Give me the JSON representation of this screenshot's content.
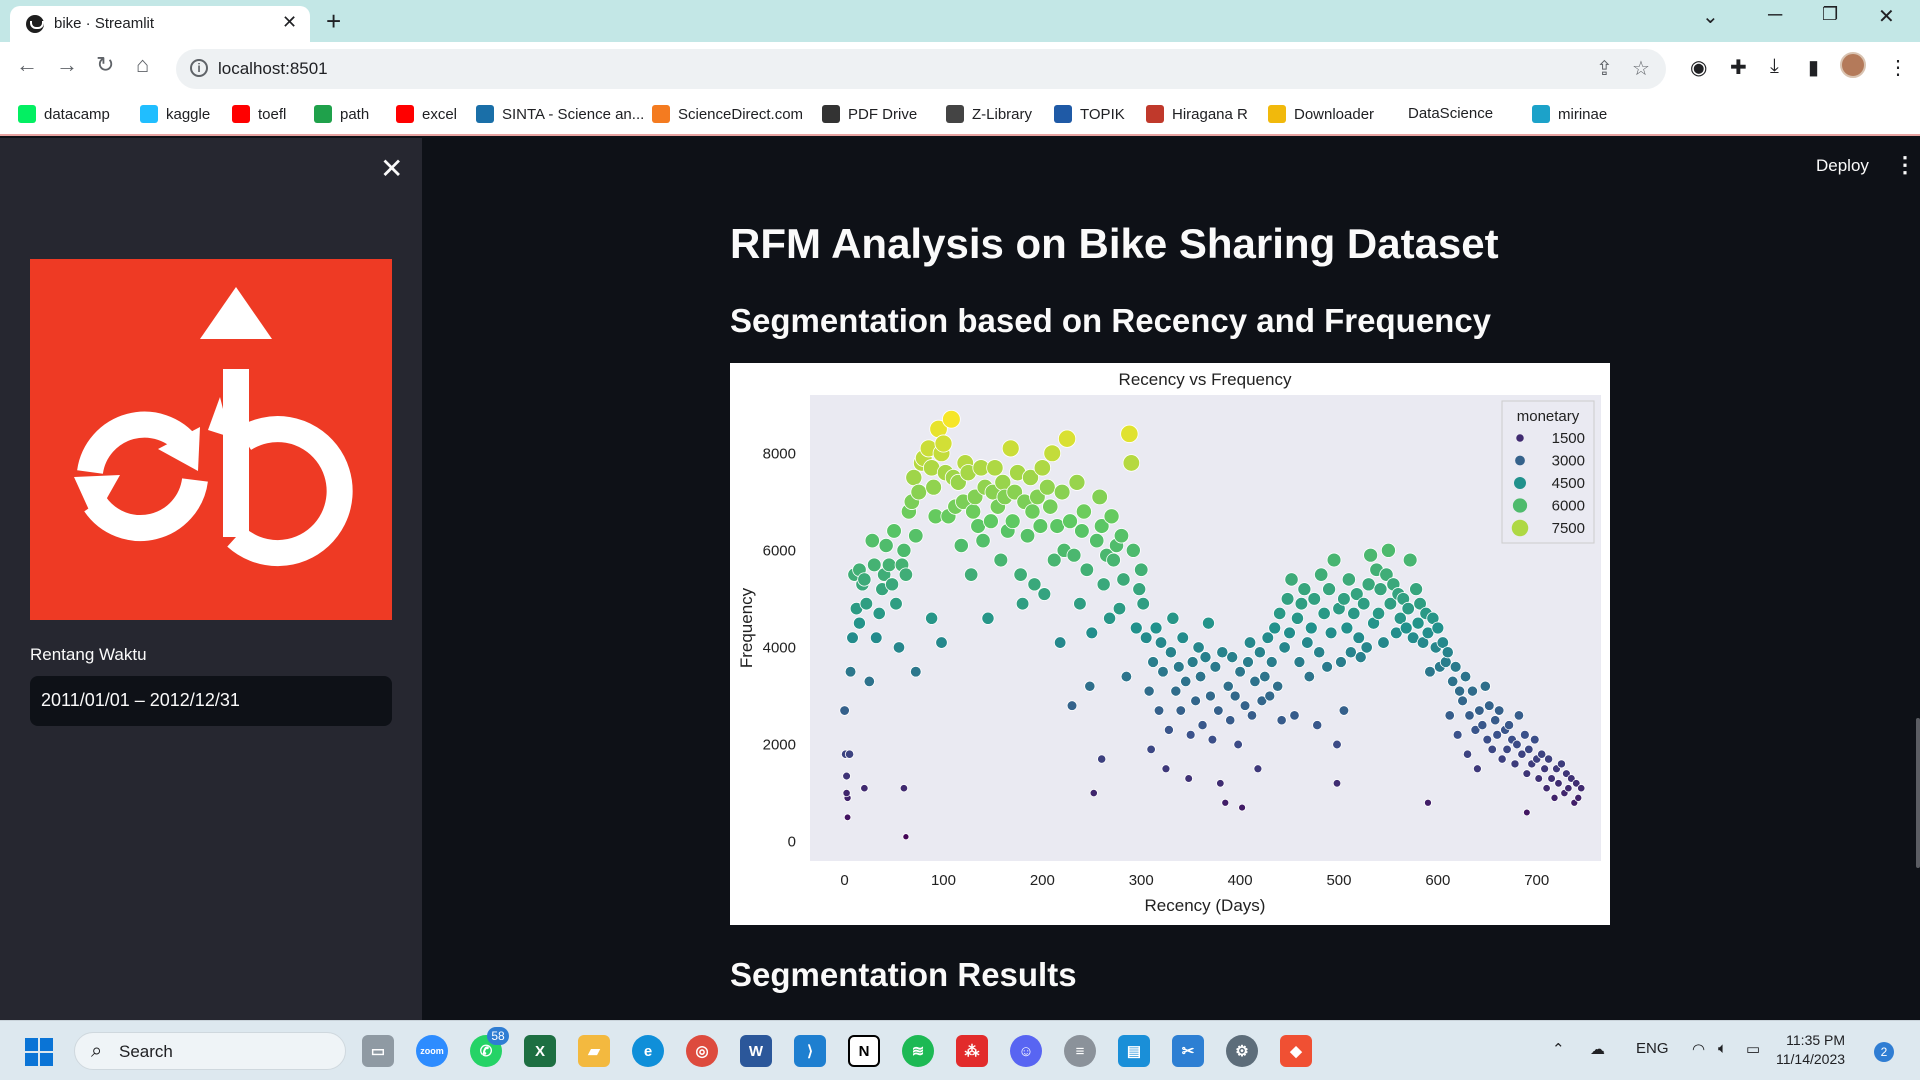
{
  "browser": {
    "tab_title": "bike · Streamlit",
    "url": "localhost:8501",
    "bookmarks": [
      {
        "label": "datacamp",
        "icon": "datacamp-icon",
        "color": "#03ef62"
      },
      {
        "label": "kaggle",
        "icon": "kaggle-icon",
        "color": "#20beff"
      },
      {
        "label": "toefl",
        "icon": "youtube-icon",
        "color": "#ff0000"
      },
      {
        "label": "path",
        "icon": "path-icon",
        "color": "#1fa14b"
      },
      {
        "label": "excel",
        "icon": "youtube-icon",
        "color": "#ff0000"
      },
      {
        "label": "SINTA - Science an...",
        "icon": "sinta-icon",
        "color": "#1a6fa8"
      },
      {
        "label": "ScienceDirect.com",
        "icon": "elsevier-icon",
        "color": "#f47b20"
      },
      {
        "label": "PDF Drive",
        "icon": "pdfdrive-icon",
        "color": "#333333"
      },
      {
        "label": "Z-Library",
        "icon": "zlibrary-icon",
        "color": "#444444"
      },
      {
        "label": "TOPIK",
        "icon": "topik-icon",
        "color": "#1f5aa6"
      },
      {
        "label": "Hiragana R",
        "icon": "hiragana-icon",
        "color": "#c0392b"
      },
      {
        "label": "Downloader",
        "icon": "downloader-icon",
        "color": "#f1b90c"
      },
      {
        "label": "DataScience",
        "icon": "",
        "color": "#ffffff"
      },
      {
        "label": "mirinae",
        "icon": "mirinae-icon",
        "color": "#1ca2c9"
      }
    ]
  },
  "app": {
    "deploy_label": "Deploy",
    "sidebar": {
      "date_label": "Rentang Waktu",
      "date_value": "2011/01/01 – 2012/12/31"
    },
    "title": "RFM Analysis on Bike Sharing Dataset",
    "subheader_1": "Segmentation based on Recency and Frequency",
    "subheader_2": "Segmentation Results"
  },
  "chart_data": {
    "type": "scatter",
    "title": "Recency vs Frequency",
    "xlabel": "Recency (Days)",
    "ylabel": "Frequency",
    "xlim": [
      -35,
      765
    ],
    "ylim": [
      -400,
      9200
    ],
    "xticks": [
      0,
      100,
      200,
      300,
      400,
      500,
      600,
      700
    ],
    "yticks": [
      0,
      2000,
      4000,
      6000,
      8000
    ],
    "hue": "monetary",
    "legend_title": "monetary",
    "legend_entries": [
      1500,
      3000,
      4500,
      6000,
      7500
    ],
    "legend_placement": "top-right",
    "colormap": "viridis",
    "grid": false,
    "points": [
      [
        0,
        2700
      ],
      [
        1,
        1800
      ],
      [
        2,
        1350
      ],
      [
        3,
        900
      ],
      [
        5,
        1800
      ],
      [
        6,
        3500
      ],
      [
        8,
        4200
      ],
      [
        10,
        5500
      ],
      [
        12,
        4800
      ],
      [
        15,
        5600
      ],
      [
        18,
        5300
      ],
      [
        20,
        5400
      ],
      [
        22,
        4900
      ],
      [
        25,
        3300
      ],
      [
        28,
        6200
      ],
      [
        30,
        5700
      ],
      [
        32,
        4200
      ],
      [
        35,
        4700
      ],
      [
        38,
        5200
      ],
      [
        40,
        5500
      ],
      [
        42,
        6100
      ],
      [
        45,
        5700
      ],
      [
        48,
        5300
      ],
      [
        50,
        6400
      ],
      [
        52,
        4900
      ],
      [
        55,
        4000
      ],
      [
        58,
        5700
      ],
      [
        60,
        6000
      ],
      [
        62,
        5500
      ],
      [
        65,
        6800
      ],
      [
        68,
        7000
      ],
      [
        70,
        7500
      ],
      [
        72,
        6300
      ],
      [
        75,
        7200
      ],
      [
        78,
        7800
      ],
      [
        80,
        7900
      ],
      [
        85,
        8100
      ],
      [
        88,
        7700
      ],
      [
        90,
        7300
      ],
      [
        92,
        6700
      ],
      [
        95,
        8500
      ],
      [
        98,
        8000
      ],
      [
        100,
        8200
      ],
      [
        102,
        7600
      ],
      [
        105,
        6700
      ],
      [
        108,
        8700
      ],
      [
        110,
        7500
      ],
      [
        112,
        6900
      ],
      [
        115,
        7400
      ],
      [
        118,
        6100
      ],
      [
        120,
        7000
      ],
      [
        122,
        7800
      ],
      [
        125,
        7600
      ],
      [
        128,
        5500
      ],
      [
        130,
        6800
      ],
      [
        132,
        7100
      ],
      [
        135,
        6500
      ],
      [
        138,
        7700
      ],
      [
        140,
        6200
      ],
      [
        142,
        7300
      ],
      [
        145,
        4600
      ],
      [
        148,
        6600
      ],
      [
        150,
        7200
      ],
      [
        152,
        7700
      ],
      [
        155,
        6900
      ],
      [
        158,
        5800
      ],
      [
        160,
        7400
      ],
      [
        162,
        7100
      ],
      [
        165,
        6400
      ],
      [
        168,
        8100
      ],
      [
        170,
        6600
      ],
      [
        172,
        7200
      ],
      [
        175,
        7600
      ],
      [
        178,
        5500
      ],
      [
        180,
        4900
      ],
      [
        182,
        7000
      ],
      [
        185,
        6300
      ],
      [
        188,
        7500
      ],
      [
        190,
        6800
      ],
      [
        192,
        5300
      ],
      [
        195,
        7100
      ],
      [
        198,
        6500
      ],
      [
        200,
        7700
      ],
      [
        202,
        5100
      ],
      [
        205,
        7300
      ],
      [
        208,
        6900
      ],
      [
        210,
        8000
      ],
      [
        212,
        5800
      ],
      [
        215,
        6500
      ],
      [
        218,
        4100
      ],
      [
        220,
        7200
      ],
      [
        222,
        6000
      ],
      [
        225,
        8300
      ],
      [
        228,
        6600
      ],
      [
        230,
        2800
      ],
      [
        232,
        5900
      ],
      [
        235,
        7400
      ],
      [
        238,
        4900
      ],
      [
        240,
        6400
      ],
      [
        242,
        6800
      ],
      [
        245,
        5600
      ],
      [
        248,
        3200
      ],
      [
        250,
        4300
      ],
      [
        252,
        1000
      ],
      [
        255,
        6200
      ],
      [
        258,
        7100
      ],
      [
        260,
        6500
      ],
      [
        262,
        5300
      ],
      [
        265,
        5900
      ],
      [
        268,
        4600
      ],
      [
        270,
        6700
      ],
      [
        272,
        5800
      ],
      [
        275,
        6100
      ],
      [
        278,
        4800
      ],
      [
        280,
        6300
      ],
      [
        282,
        5400
      ],
      [
        285,
        3400
      ],
      [
        288,
        8400
      ],
      [
        290,
        7800
      ],
      [
        292,
        6000
      ],
      [
        295,
        4400
      ],
      [
        298,
        5200
      ],
      [
        300,
        5600
      ],
      [
        302,
        4900
      ],
      [
        305,
        4200
      ],
      [
        308,
        3100
      ],
      [
        310,
        1900
      ],
      [
        312,
        3700
      ],
      [
        315,
        4400
      ],
      [
        318,
        2700
      ],
      [
        320,
        4100
      ],
      [
        322,
        3500
      ],
      [
        325,
        1500
      ],
      [
        328,
        2300
      ],
      [
        330,
        3900
      ],
      [
        332,
        4600
      ],
      [
        335,
        3100
      ],
      [
        338,
        3600
      ],
      [
        340,
        2700
      ],
      [
        342,
        4200
      ],
      [
        345,
        3300
      ],
      [
        348,
        1300
      ],
      [
        350,
        2200
      ],
      [
        352,
        3700
      ],
      [
        355,
        2900
      ],
      [
        358,
        4000
      ],
      [
        360,
        3400
      ],
      [
        362,
        2400
      ],
      [
        365,
        3800
      ],
      [
        368,
        4500
      ],
      [
        370,
        3000
      ],
      [
        372,
        2100
      ],
      [
        375,
        3600
      ],
      [
        378,
        2700
      ],
      [
        380,
        1200
      ],
      [
        382,
        3900
      ],
      [
        385,
        800
      ],
      [
        388,
        3200
      ],
      [
        390,
        2500
      ],
      [
        392,
        3800
      ],
      [
        395,
        3000
      ],
      [
        398,
        2000
      ],
      [
        400,
        3500
      ],
      [
        402,
        700
      ],
      [
        405,
        2800
      ],
      [
        408,
        3700
      ],
      [
        410,
        4100
      ],
      [
        412,
        2600
      ],
      [
        415,
        3300
      ],
      [
        418,
        1500
      ],
      [
        420,
        3900
      ],
      [
        422,
        2900
      ],
      [
        425,
        3400
      ],
      [
        428,
        4200
      ],
      [
        430,
        3000
      ],
      [
        432,
        3700
      ],
      [
        435,
        4400
      ],
      [
        438,
        3200
      ],
      [
        440,
        4700
      ],
      [
        442,
        2500
      ],
      [
        445,
        4000
      ],
      [
        448,
        5000
      ],
      [
        450,
        4300
      ],
      [
        452,
        5400
      ],
      [
        455,
        2600
      ],
      [
        458,
        4600
      ],
      [
        460,
        3700
      ],
      [
        462,
        4900
      ],
      [
        465,
        5200
      ],
      [
        468,
        4100
      ],
      [
        470,
        3400
      ],
      [
        472,
        4400
      ],
      [
        475,
        5000
      ],
      [
        478,
        2400
      ],
      [
        480,
        3900
      ],
      [
        482,
        5500
      ],
      [
        485,
        4700
      ],
      [
        488,
        3600
      ],
      [
        490,
        5200
      ],
      [
        492,
        4300
      ],
      [
        495,
        5800
      ],
      [
        498,
        1200
      ],
      [
        500,
        4800
      ],
      [
        502,
        3700
      ],
      [
        505,
        5000
      ],
      [
        508,
        4400
      ],
      [
        510,
        5400
      ],
      [
        512,
        3900
      ],
      [
        515,
        4700
      ],
      [
        518,
        5100
      ],
      [
        520,
        4200
      ],
      [
        522,
        3800
      ],
      [
        525,
        4900
      ],
      [
        528,
        4000
      ],
      [
        530,
        5300
      ],
      [
        532,
        5900
      ],
      [
        535,
        4500
      ],
      [
        538,
        5600
      ],
      [
        540,
        4700
      ],
      [
        542,
        5200
      ],
      [
        545,
        4100
      ],
      [
        548,
        5500
      ],
      [
        550,
        6000
      ],
      [
        552,
        4900
      ],
      [
        555,
        5300
      ],
      [
        558,
        4300
      ],
      [
        560,
        5100
      ],
      [
        562,
        4600
      ],
      [
        565,
        5000
      ],
      [
        568,
        4400
      ],
      [
        570,
        4800
      ],
      [
        572,
        5800
      ],
      [
        575,
        4200
      ],
      [
        578,
        5200
      ],
      [
        580,
        4500
      ],
      [
        582,
        4900
      ],
      [
        585,
        4100
      ],
      [
        588,
        4700
      ],
      [
        590,
        4300
      ],
      [
        592,
        3500
      ],
      [
        595,
        4600
      ],
      [
        598,
        4000
      ],
      [
        600,
        4400
      ],
      [
        602,
        3600
      ],
      [
        605,
        4100
      ],
      [
        608,
        3700
      ],
      [
        610,
        3900
      ],
      [
        612,
        2600
      ],
      [
        615,
        3300
      ],
      [
        618,
        3600
      ],
      [
        620,
        2200
      ],
      [
        622,
        3100
      ],
      [
        625,
        2900
      ],
      [
        628,
        3400
      ],
      [
        630,
        1800
      ],
      [
        632,
        2600
      ],
      [
        635,
        3100
      ],
      [
        638,
        2300
      ],
      [
        640,
        1500
      ],
      [
        642,
        2700
      ],
      [
        645,
        2400
      ],
      [
        648,
        3200
      ],
      [
        650,
        2100
      ],
      [
        652,
        2800
      ],
      [
        655,
        1900
      ],
      [
        658,
        2500
      ],
      [
        660,
        2200
      ],
      [
        662,
        2700
      ],
      [
        665,
        1700
      ],
      [
        668,
        2300
      ],
      [
        670,
        1900
      ],
      [
        672,
        2400
      ],
      [
        675,
        2100
      ],
      [
        678,
        1600
      ],
      [
        680,
        2000
      ],
      [
        682,
        2600
      ],
      [
        685,
        1800
      ],
      [
        688,
        2200
      ],
      [
        690,
        1400
      ],
      [
        692,
        1900
      ],
      [
        695,
        1600
      ],
      [
        698,
        2100
      ],
      [
        700,
        1700
      ],
      [
        702,
        1300
      ],
      [
        705,
        1800
      ],
      [
        708,
        1500
      ],
      [
        710,
        1100
      ],
      [
        712,
        1700
      ],
      [
        715,
        1300
      ],
      [
        718,
        900
      ],
      [
        720,
        1500
      ],
      [
        722,
        1200
      ],
      [
        725,
        1600
      ],
      [
        728,
        1000
      ],
      [
        730,
        1400
      ],
      [
        732,
        1100
      ],
      [
        735,
        1300
      ],
      [
        738,
        800
      ],
      [
        740,
        1200
      ],
      [
        742,
        900
      ],
      [
        745,
        1100
      ],
      [
        60,
        1100
      ],
      [
        62,
        100
      ],
      [
        20,
        1100
      ],
      [
        15,
        4500
      ],
      [
        72,
        3500
      ],
      [
        88,
        4600
      ],
      [
        98,
        4100
      ],
      [
        3,
        500
      ],
      [
        2,
        1000
      ],
      [
        260,
        1700
      ],
      [
        498,
        2000
      ],
      [
        505,
        2700
      ],
      [
        590,
        800
      ],
      [
        690,
        600
      ]
    ]
  }
}
